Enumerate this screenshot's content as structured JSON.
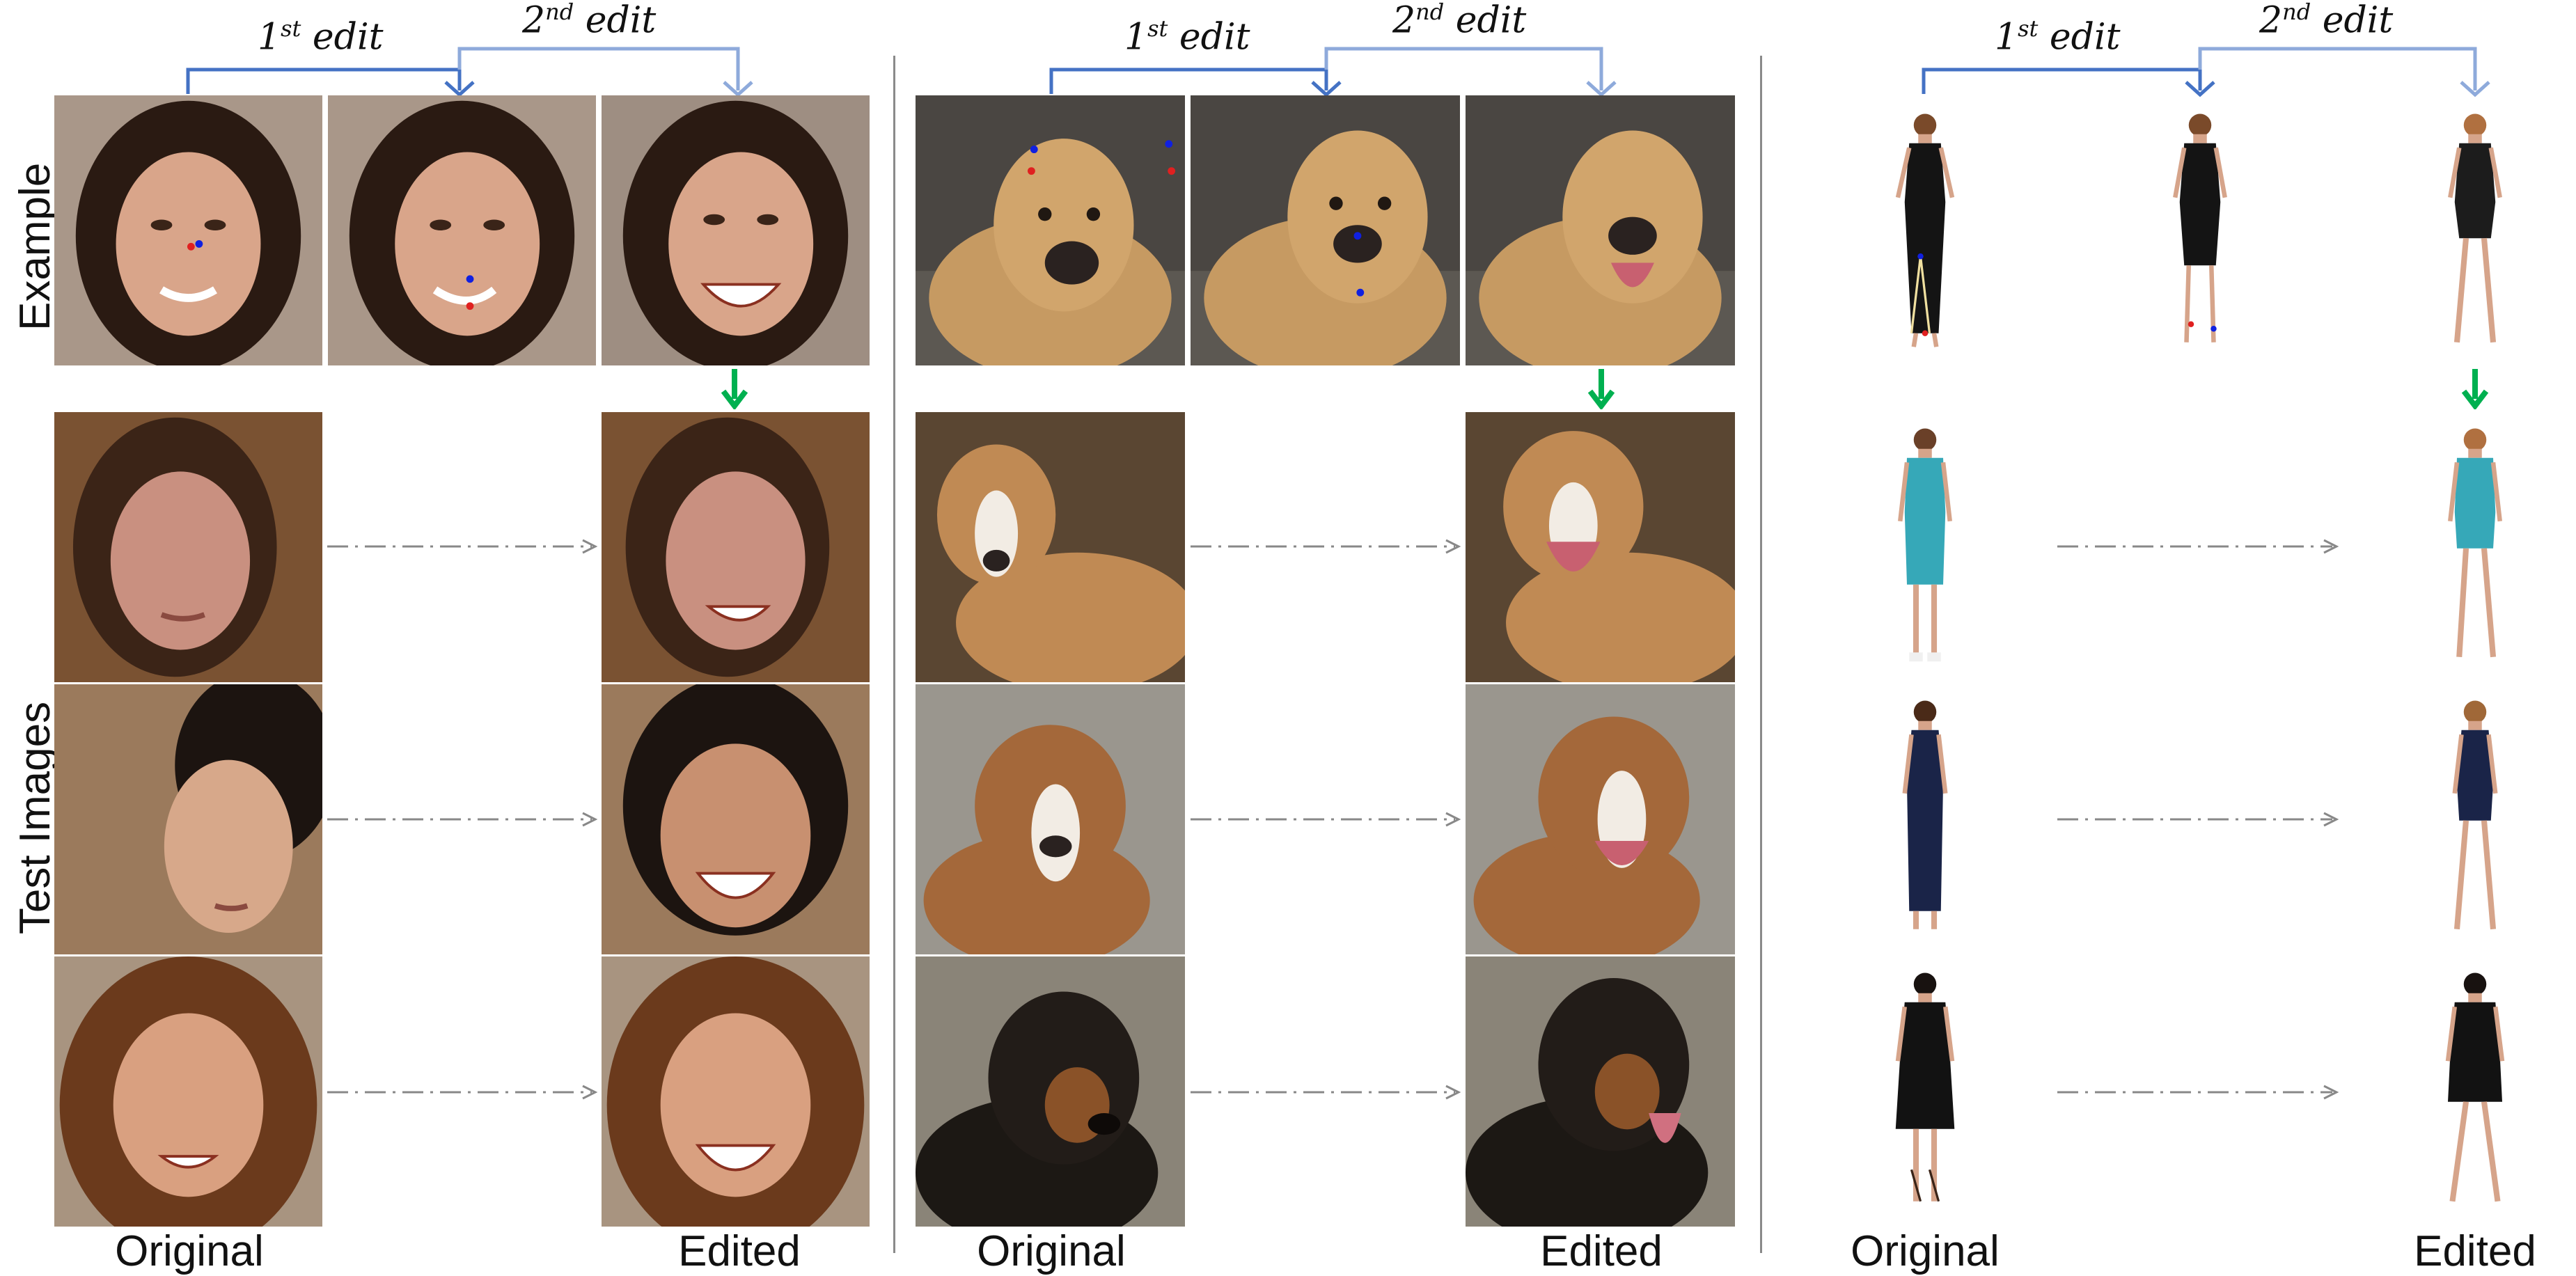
{
  "row_labels": {
    "example": "Example",
    "test": "Test Images"
  },
  "edit_labels": {
    "first": {
      "ordinal": "1",
      "suffix": "st",
      "word": "edit"
    },
    "second": {
      "ordinal": "2",
      "suffix": "nd",
      "word": "edit"
    }
  },
  "panels": [
    {
      "id": "faces",
      "original_label": "Original",
      "edited_label": "Edited"
    },
    {
      "id": "dogs",
      "original_label": "Original",
      "edited_label": "Edited"
    },
    {
      "id": "fashion",
      "original_label": "Original",
      "edited_label": "Edited"
    }
  ],
  "colors": {
    "bracket_first": "#4472c4",
    "bracket_second": "#8eaadb",
    "green_arrow": "#00b050",
    "dashdot_arrow": "#888888",
    "keypoint_red": "#e02020",
    "keypoint_blue": "#1020e0"
  }
}
